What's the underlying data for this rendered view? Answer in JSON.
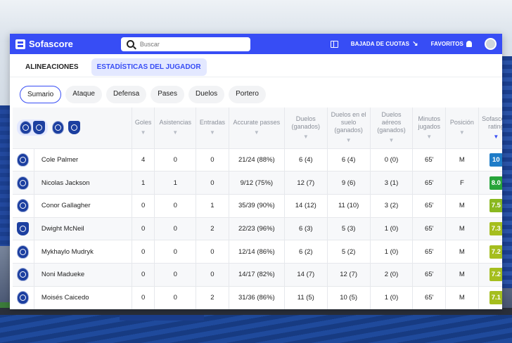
{
  "topbar": {
    "brand": "Sofascore",
    "search_placeholder": "Buscar",
    "odds_label": "BAJADA DE CUOTAS",
    "favorites_label": "FAVORITOS"
  },
  "main_tabs": [
    {
      "label": "ALINEACIONES",
      "active": false
    },
    {
      "label": "ESTADÍSTICAS DEL JUGADOR",
      "active": true
    }
  ],
  "sub_tabs": [
    {
      "label": "Sumario",
      "active": true
    },
    {
      "label": "Ataque",
      "active": false
    },
    {
      "label": "Defensa",
      "active": false
    },
    {
      "label": "Pases",
      "active": false
    },
    {
      "label": "Duelos",
      "active": false
    },
    {
      "label": "Portero",
      "active": false
    }
  ],
  "columns": [
    "Goles",
    "Asistencias",
    "Entradas",
    "Accurate passes",
    "Duelos (ganados)",
    "Duelos en el suelo (ganados)",
    "Duelos aéreos (ganados)",
    "Minutos jugados",
    "Posición",
    "Sofascore rating"
  ],
  "sort_icon": "▼",
  "players": [
    {
      "team": "chelsea",
      "name": "Cole Palmer",
      "goals": "4",
      "assists": "0",
      "tackles": "0",
      "passes": "21/24 (88%)",
      "duels": "6 (4)",
      "ground": "6 (4)",
      "aerial": "0 (0)",
      "minutes": "65'",
      "pos": "M",
      "rating": "10",
      "rating_color": "#1e7cc8"
    },
    {
      "team": "chelsea",
      "name": "Nicolas Jackson",
      "goals": "1",
      "assists": "1",
      "tackles": "0",
      "passes": "9/12 (75%)",
      "duels": "12 (7)",
      "ground": "9 (6)",
      "aerial": "3 (1)",
      "minutes": "65'",
      "pos": "F",
      "rating": "8.0",
      "rating_color": "#27a43a"
    },
    {
      "team": "chelsea",
      "name": "Conor Gallagher",
      "goals": "0",
      "assists": "0",
      "tackles": "1",
      "passes": "35/39 (90%)",
      "duels": "14 (12)",
      "ground": "11 (10)",
      "aerial": "3 (2)",
      "minutes": "65'",
      "pos": "M",
      "rating": "7.5",
      "rating_color": "#8ab820"
    },
    {
      "team": "everton",
      "name": "Dwight McNeil",
      "goals": "0",
      "assists": "0",
      "tackles": "2",
      "passes": "22/23 (96%)",
      "duels": "6 (3)",
      "ground": "5 (3)",
      "aerial": "1 (0)",
      "minutes": "65'",
      "pos": "M",
      "rating": "7.3",
      "rating_color": "#a5be1e"
    },
    {
      "team": "chelsea",
      "name": "Mykhaylo Mudryk",
      "goals": "0",
      "assists": "0",
      "tackles": "0",
      "passes": "12/14 (86%)",
      "duels": "6 (2)",
      "ground": "5 (2)",
      "aerial": "1 (0)",
      "minutes": "65'",
      "pos": "M",
      "rating": "7.2",
      "rating_color": "#a5be1e"
    },
    {
      "team": "chelsea",
      "name": "Noni Madueke",
      "goals": "0",
      "assists": "0",
      "tackles": "0",
      "passes": "14/17 (82%)",
      "duels": "14 (7)",
      "ground": "12 (7)",
      "aerial": "2 (0)",
      "minutes": "65'",
      "pos": "M",
      "rating": "7.2",
      "rating_color": "#a5be1e"
    },
    {
      "team": "chelsea",
      "name": "Moisés Caicedo",
      "goals": "0",
      "assists": "0",
      "tackles": "2",
      "passes": "31/36 (86%)",
      "duels": "11 (5)",
      "ground": "10 (5)",
      "aerial": "1 (0)",
      "minutes": "65'",
      "pos": "M",
      "rating": "7.1",
      "rating_color": "#a5be1e"
    }
  ]
}
